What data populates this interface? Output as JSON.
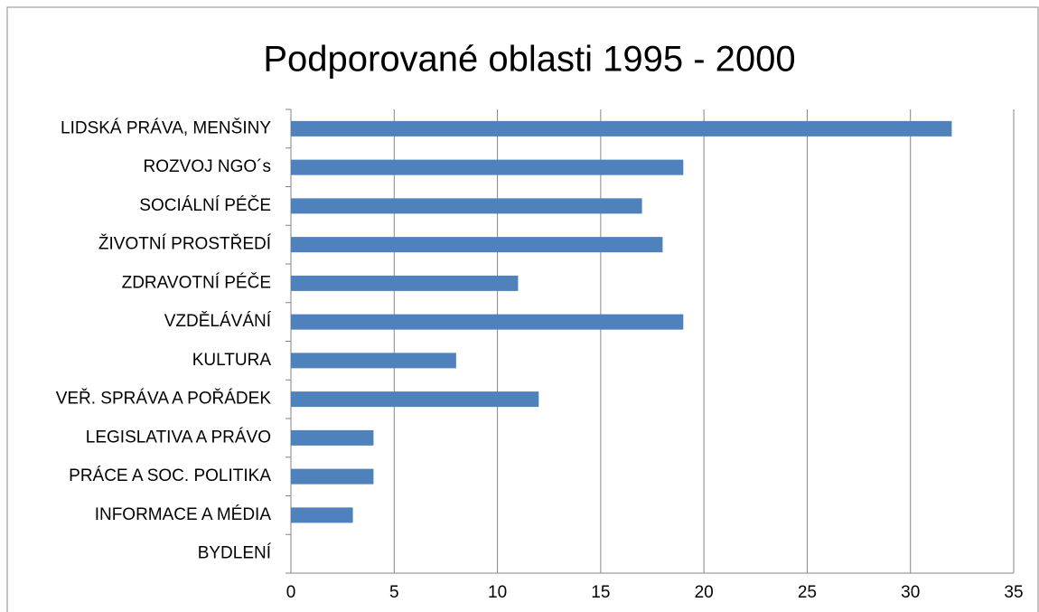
{
  "chart_data": {
    "type": "bar",
    "orientation": "horizontal",
    "title": "Podporované oblasti 1995 - 2000",
    "categories": [
      "LIDSKÁ PRÁVA, MENŠINY",
      "ROZVOJ NGO´s",
      "SOCIÁLNÍ PÉČE",
      "ŽIVOTNÍ PROSTŘEDÍ",
      "ZDRAVOTNÍ PÉČE",
      "VZDĚLÁVÁNÍ",
      "KULTURA",
      "VEŘ. SPRÁVA A POŘÁDEK",
      "LEGISLATIVA A PRÁVO",
      "PRÁCE A SOC. POLITIKA",
      "INFORMACE A MÉDIA",
      "BYDLENÍ"
    ],
    "values": [
      32,
      19,
      17,
      18,
      11,
      19,
      8,
      12,
      4,
      4,
      3,
      0
    ],
    "color": "#4f81bd",
    "xlim": [
      0,
      35
    ],
    "xticks": [
      0,
      5,
      10,
      15,
      20,
      25,
      30,
      35
    ],
    "grid": true
  }
}
